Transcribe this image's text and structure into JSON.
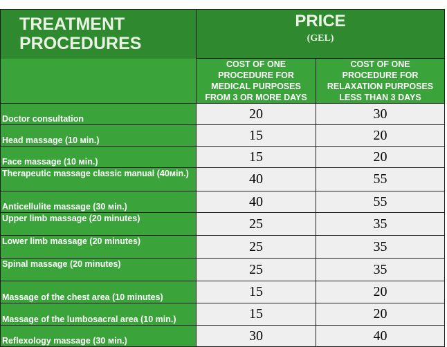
{
  "header": {
    "treatment_title_line1": "TREATMENT",
    "treatment_title_line2": "PROCEDURES",
    "price_label": "PRICE",
    "price_unit": "(GEL)",
    "medical_col": [
      "COST OF ONE",
      "PROCEDURE FOR",
      "MEDICAL PURPOSES",
      "FROM 3 OR MORE DAYS"
    ],
    "relax_col": [
      "COST OF ONE",
      "PROCEDURE FOR",
      "RELAXATION  PURPOSES",
      "LESS THAN 3 DAYS"
    ]
  },
  "rows": [
    {
      "name": "Doctor consultation",
      "medical": "20",
      "relaxation": "30"
    },
    {
      "name": "Head massage (10 мin.)",
      "medical": "15",
      "relaxation": "20"
    },
    {
      "name": "Face massage (10 мin.)",
      "medical": "15",
      "relaxation": "20"
    },
    {
      "name": "Therapeutic massage classic manual (40мin.)",
      "medical": "40",
      "relaxation": "55"
    },
    {
      "name": "Anticellulite massage (30 мin.)",
      "medical": "40",
      "relaxation": "55"
    },
    {
      "name": "Upper limb massage (20 minutes)",
      "medical": "25",
      "relaxation": "35"
    },
    {
      "name": "Lower limb massage (20 minutes)",
      "medical": "25",
      "relaxation": "35"
    },
    {
      "name": "Spinal massage (20 minutes)",
      "medical": "25",
      "relaxation": "35"
    },
    {
      "name": "Massage of the chest area (10 minutes)",
      "medical": "15",
      "relaxation": "20"
    },
    {
      "name": "Massage of the lumbosacral area (10 min.)",
      "medical": "15",
      "relaxation": "20"
    },
    {
      "name": "Reflexology massage (30 мin.)",
      "medical": "30",
      "relaxation": "40"
    }
  ],
  "colors": {
    "header_dark_green": "#2f8a2f",
    "header_green": "#3aa33a",
    "value_cell_bg": "#efefef"
  }
}
